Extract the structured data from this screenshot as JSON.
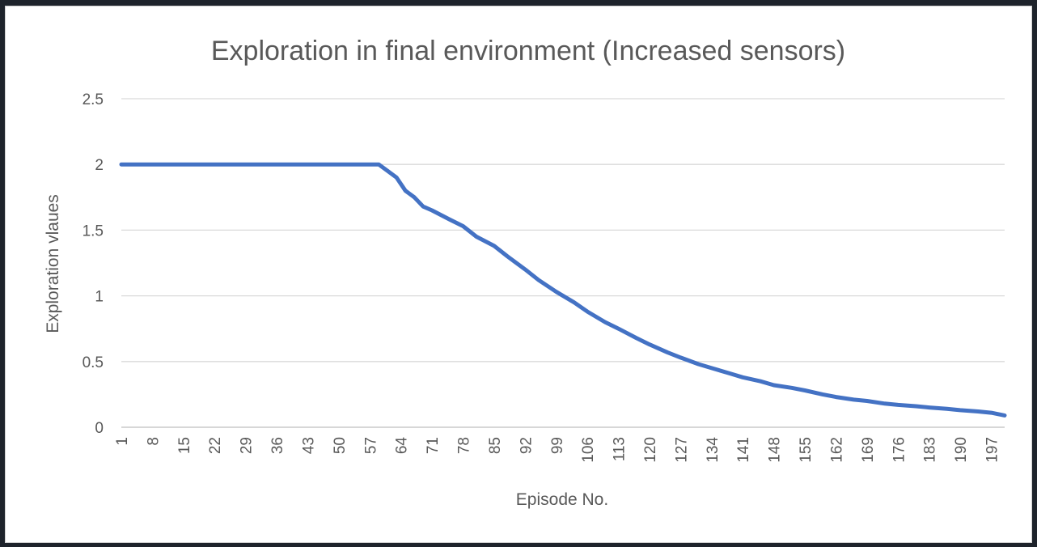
{
  "chart_data": {
    "type": "line",
    "title": "Exploration in final environment (Increased sensors)",
    "xlabel": "Episode No.",
    "ylabel": "Exploration vlaues",
    "ylim": [
      0,
      2.5
    ],
    "yticks": [
      "0",
      "0.5",
      "1",
      "1.5",
      "2",
      "2.5"
    ],
    "xticks": [
      "1",
      "8",
      "15",
      "22",
      "29",
      "36",
      "43",
      "50",
      "57",
      "64",
      "71",
      "78",
      "85",
      "92",
      "99",
      "106",
      "113",
      "120",
      "127",
      "134",
      "141",
      "148",
      "155",
      "162",
      "169",
      "176",
      "183",
      "190",
      "197"
    ],
    "grid": true,
    "legend": "none",
    "series_color": "#4472c4",
    "x": [
      1,
      8,
      15,
      22,
      29,
      36,
      43,
      50,
      57,
      59,
      61,
      63,
      65,
      67,
      69,
      71,
      75,
      78,
      81,
      85,
      88,
      92,
      95,
      99,
      103,
      106,
      110,
      113,
      117,
      120,
      124,
      127,
      131,
      134,
      138,
      141,
      145,
      148,
      152,
      155,
      159,
      162,
      166,
      169,
      173,
      176,
      180,
      183,
      187,
      190,
      194,
      197,
      200
    ],
    "y": [
      2.0,
      2.0,
      2.0,
      2.0,
      2.0,
      2.0,
      2.0,
      2.0,
      2.0,
      2.0,
      1.95,
      1.9,
      1.8,
      1.75,
      1.68,
      1.65,
      1.58,
      1.53,
      1.45,
      1.38,
      1.3,
      1.2,
      1.12,
      1.03,
      0.95,
      0.88,
      0.8,
      0.75,
      0.68,
      0.63,
      0.57,
      0.53,
      0.48,
      0.45,
      0.41,
      0.38,
      0.35,
      0.32,
      0.3,
      0.28,
      0.25,
      0.23,
      0.21,
      0.2,
      0.18,
      0.17,
      0.16,
      0.15,
      0.14,
      0.13,
      0.12,
      0.11,
      0.09
    ]
  }
}
